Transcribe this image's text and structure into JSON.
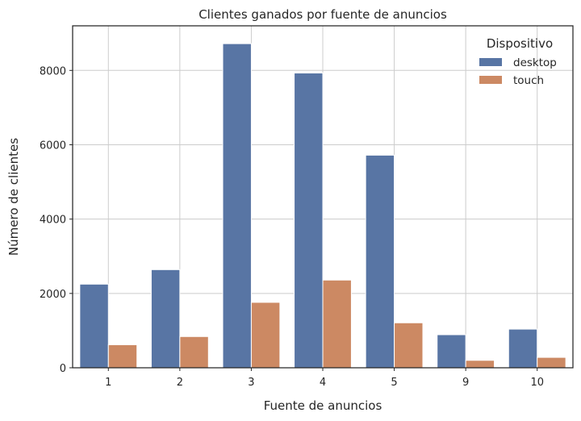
{
  "chart_data": {
    "type": "bar",
    "title": "Clientes ganados por fuente de anuncios",
    "xlabel": "Fuente de anuncios",
    "ylabel": "Número de clientes",
    "categories": [
      "1",
      "2",
      "3",
      "4",
      "5",
      "9",
      "10"
    ],
    "series": [
      {
        "name": "desktop",
        "color": "#5875a4",
        "values": [
          2250,
          2640,
          8720,
          7930,
          5720,
          890,
          1040
        ]
      },
      {
        "name": "touch",
        "color": "#cc8963",
        "values": [
          620,
          840,
          1760,
          2360,
          1210,
          200,
          280
        ]
      }
    ],
    "ylim": [
      0,
      9200
    ],
    "yticks": [
      0,
      2000,
      4000,
      6000,
      8000
    ],
    "grid": true,
    "legend": {
      "title": "Dispositivo",
      "position": "top-right"
    }
  }
}
